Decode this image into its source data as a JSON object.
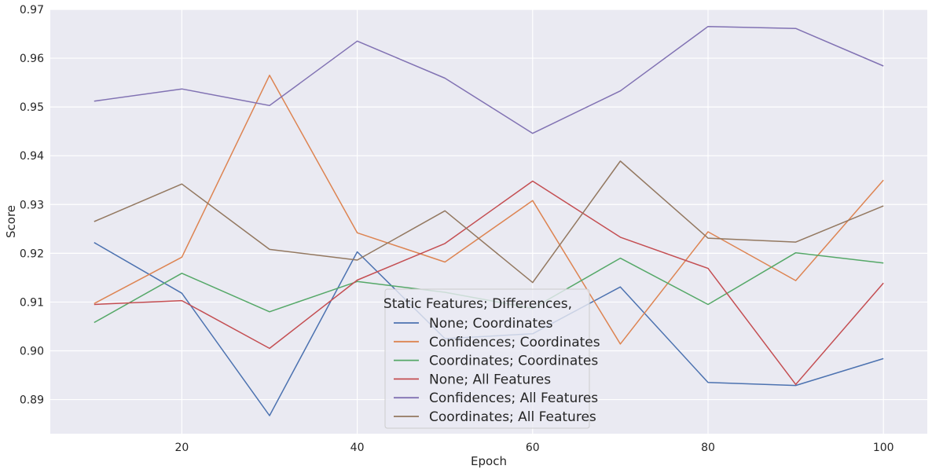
{
  "chart_data": {
    "type": "line",
    "xlabel": "Epoch",
    "ylabel": "Score",
    "xlim": [
      5,
      105
    ],
    "ylim": [
      0.883,
      0.97
    ],
    "x": [
      10,
      20,
      30,
      40,
      50,
      60,
      70,
      80,
      90,
      100
    ],
    "x_ticks": [
      20,
      40,
      60,
      80,
      100
    ],
    "x_tick_labels": [
      "20",
      "40",
      "60",
      "80",
      "100"
    ],
    "y_ticks": [
      0.89,
      0.9,
      0.91,
      0.92,
      0.93,
      0.94,
      0.95,
      0.96,
      0.97
    ],
    "y_tick_labels": [
      "0.89",
      "0.90",
      "0.91",
      "0.92",
      "0.93",
      "0.94",
      "0.95",
      "0.96",
      "0.97"
    ],
    "grid": true,
    "legend": {
      "title": "Static Features; Differences,",
      "position": "bottom-center"
    },
    "series": [
      {
        "name": "None; Coordinates",
        "color": "#4c72b0",
        "values": [
          0.9222,
          0.9118,
          0.8867,
          0.9203,
          0.9025,
          0.9035,
          0.9131,
          0.8935,
          0.8929,
          0.8984
        ]
      },
      {
        "name": "Confidences; Coordinates",
        "color": "#dd8452",
        "values": [
          0.9097,
          0.9192,
          0.9565,
          0.9242,
          0.9182,
          0.9308,
          0.9014,
          0.9244,
          0.9144,
          0.935
        ]
      },
      {
        "name": "Coordinates; Coordinates",
        "color": "#55a868",
        "values": [
          0.9058,
          0.9159,
          0.908,
          0.9142,
          0.912,
          0.9087,
          0.919,
          0.9095,
          0.9201,
          0.918
        ]
      },
      {
        "name": "None; All Features",
        "color": "#c44e52",
        "values": [
          0.9095,
          0.9103,
          0.9005,
          0.9145,
          0.922,
          0.9348,
          0.9233,
          0.9169,
          0.8931,
          0.9139
        ]
      },
      {
        "name": "Confidences; All Features",
        "color": "#8172b3",
        "values": [
          0.9512,
          0.9537,
          0.9503,
          0.9635,
          0.9559,
          0.9446,
          0.9533,
          0.9665,
          0.9661,
          0.9584
        ]
      },
      {
        "name": "Coordinates; All Features",
        "color": "#937860",
        "values": [
          0.9265,
          0.9342,
          0.9208,
          0.9186,
          0.9287,
          0.914,
          0.9389,
          0.9231,
          0.9223,
          0.9297
        ]
      }
    ]
  }
}
